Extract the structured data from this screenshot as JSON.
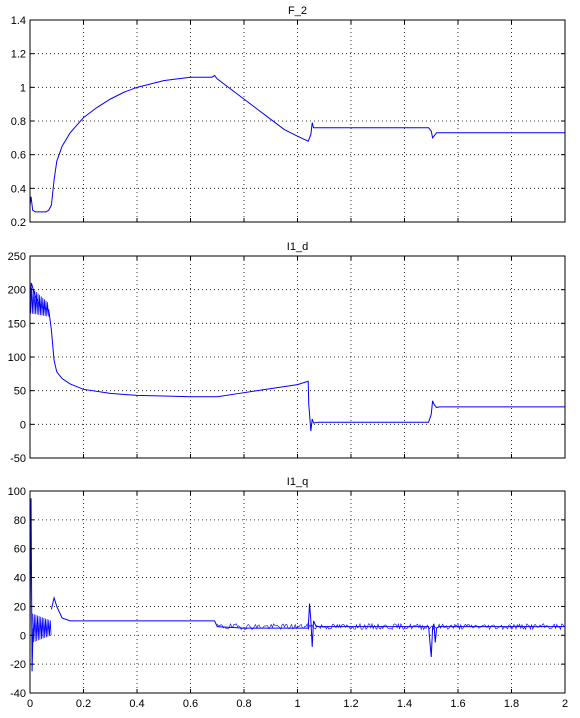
{
  "chart_data": [
    {
      "type": "line",
      "title": "F_2",
      "xlim": [
        0,
        2
      ],
      "ylim": [
        0.2,
        1.4
      ],
      "xticks": [
        0,
        0.2,
        0.4,
        0.6,
        0.8,
        1,
        1.2,
        1.4,
        1.6,
        1.8,
        2
      ],
      "yticks": [
        0.2,
        0.4,
        0.6,
        0.8,
        1,
        1.2,
        1.4
      ],
      "xtick_labels_shown": false,
      "grid": true,
      "line_color": "#0000ff",
      "series": [
        {
          "x": [
            0,
            0.004,
            0.01,
            0.02,
            0.04,
            0.06,
            0.07,
            0.08,
            0.09,
            0.1,
            0.12,
            0.15,
            0.2,
            0.25,
            0.3,
            0.35,
            0.4,
            0.45,
            0.5,
            0.55,
            0.6,
            0.65,
            0.68,
            0.69,
            0.7,
            0.75,
            0.8,
            0.85,
            0.9,
            0.95,
            1.0,
            1.04,
            1.05,
            1.055,
            1.06,
            1.08,
            1.1,
            1.2,
            1.3,
            1.4,
            1.49,
            1.5,
            1.505,
            1.51,
            1.52,
            1.53,
            1.6,
            1.7,
            1.8,
            1.9,
            2.0
          ],
          "y": [
            0.3,
            0.35,
            0.27,
            0.26,
            0.26,
            0.26,
            0.27,
            0.3,
            0.45,
            0.56,
            0.65,
            0.73,
            0.82,
            0.88,
            0.93,
            0.97,
            1.0,
            1.02,
            1.04,
            1.05,
            1.06,
            1.06,
            1.06,
            1.07,
            1.05,
            0.99,
            0.93,
            0.87,
            0.81,
            0.75,
            0.71,
            0.68,
            0.72,
            0.79,
            0.76,
            0.76,
            0.76,
            0.76,
            0.76,
            0.76,
            0.76,
            0.74,
            0.7,
            0.71,
            0.73,
            0.73,
            0.73,
            0.73,
            0.73,
            0.73,
            0.73
          ]
        }
      ]
    },
    {
      "type": "line",
      "title": "I1_d",
      "xlim": [
        0,
        2
      ],
      "ylim": [
        -50,
        250
      ],
      "xticks": [
        0,
        0.2,
        0.4,
        0.6,
        0.8,
        1,
        1.2,
        1.4,
        1.6,
        1.8,
        2
      ],
      "yticks": [
        -50,
        0,
        50,
        100,
        150,
        200,
        250
      ],
      "xtick_labels_shown": false,
      "grid": true,
      "line_color": "#0000ff",
      "oscillation_band": {
        "x": [
          0,
          0.07
        ],
        "upper": [
          205,
          180
        ],
        "lower": [
          165,
          160
        ]
      },
      "series": [
        {
          "x": [
            0,
            0.005,
            0.02,
            0.04,
            0.06,
            0.07,
            0.08,
            0.09,
            0.1,
            0.12,
            0.15,
            0.2,
            0.3,
            0.4,
            0.5,
            0.6,
            0.7,
            0.8,
            0.9,
            1.0,
            1.04,
            1.042,
            1.05,
            1.055,
            1.06,
            1.08,
            1.1,
            1.2,
            1.3,
            1.4,
            1.49,
            1.5,
            1.505,
            1.51,
            1.52,
            1.53,
            1.6,
            1.7,
            1.8,
            1.9,
            2.0
          ],
          "y": [
            180,
            210,
            190,
            175,
            172,
            170,
            140,
            95,
            78,
            68,
            60,
            52,
            46,
            43,
            42,
            41,
            41,
            47,
            53,
            59,
            64,
            30,
            -10,
            8,
            2,
            3,
            3,
            3,
            3,
            3,
            3,
            15,
            35,
            30,
            25,
            26,
            26,
            26,
            26,
            26,
            26
          ]
        }
      ]
    },
    {
      "type": "line",
      "title": "I1_q",
      "xlim": [
        0,
        2
      ],
      "ylim": [
        -40,
        100
      ],
      "xticks": [
        0,
        0.2,
        0.4,
        0.6,
        0.8,
        1,
        1.2,
        1.4,
        1.6,
        1.8,
        2
      ],
      "xtick_labels": [
        "0",
        "0.2",
        "0.4",
        "0.6",
        "0.8",
        "1",
        "1.2",
        "1.4",
        "1.6",
        "1.8",
        "2"
      ],
      "yticks": [
        -40,
        -20,
        0,
        20,
        40,
        60,
        80,
        100
      ],
      "xtick_labels_shown": true,
      "grid": true,
      "line_color": "#0000ff",
      "initial_spike": {
        "x": 0.004,
        "ymin": -25,
        "ymax": 95
      },
      "oscillation_band": {
        "x": [
          0.01,
          0.08
        ],
        "upper": [
          15,
          10
        ],
        "lower": [
          -5,
          0
        ]
      },
      "noise_band": {
        "x": [
          0.7,
          2.0
        ],
        "upper": 8,
        "lower": 4
      },
      "series": [
        {
          "x": [
            0.08,
            0.09,
            0.1,
            0.12,
            0.15,
            0.2,
            0.4,
            0.6,
            0.69,
            0.7,
            0.8,
            0.9,
            1.0,
            1.04,
            1.045,
            1.05,
            1.055,
            1.06,
            1.07,
            1.1,
            1.2,
            1.3,
            1.4,
            1.49,
            1.5,
            1.505,
            1.51,
            1.515,
            1.52,
            1.53,
            1.6,
            1.7,
            1.8,
            1.9,
            2.0
          ],
          "y": [
            18,
            26,
            20,
            12,
            10,
            10,
            10,
            10,
            10,
            6,
            5,
            5,
            5,
            5,
            22,
            10,
            -8,
            10,
            6,
            6,
            6,
            6,
            6,
            6,
            -15,
            5,
            8,
            -5,
            5,
            6,
            6,
            6,
            6,
            6,
            6
          ]
        }
      ]
    }
  ]
}
